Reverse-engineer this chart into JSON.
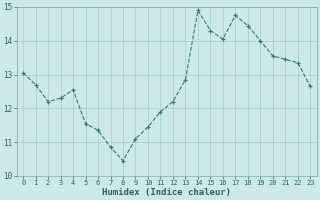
{
  "x": [
    0,
    1,
    2,
    3,
    4,
    5,
    6,
    7,
    8,
    9,
    10,
    11,
    12,
    13,
    14,
    15,
    16,
    17,
    18,
    19,
    20,
    21,
    22,
    23
  ],
  "y": [
    13.05,
    12.7,
    12.2,
    12.3,
    12.55,
    11.55,
    11.35,
    10.85,
    10.45,
    11.1,
    11.45,
    11.9,
    12.2,
    12.85,
    14.9,
    14.3,
    14.05,
    14.75,
    14.45,
    14.0,
    13.55,
    13.45,
    13.35,
    12.65
  ],
  "line_color": "#2e7d6e",
  "bg_color": "#cce8e8",
  "grid_color": "#aacfcf",
  "xlabel": "Humidex (Indice chaleur)",
  "ylim": [
    10,
    15
  ],
  "xlim": [
    -0.5,
    23.5
  ],
  "yticks": [
    10,
    11,
    12,
    13,
    14,
    15
  ],
  "xticks": [
    0,
    1,
    2,
    3,
    4,
    5,
    6,
    7,
    8,
    9,
    10,
    11,
    12,
    13,
    14,
    15,
    16,
    17,
    18,
    19,
    20,
    21,
    22,
    23
  ],
  "tick_fontsize": 5.0,
  "xlabel_fontsize": 6.5
}
